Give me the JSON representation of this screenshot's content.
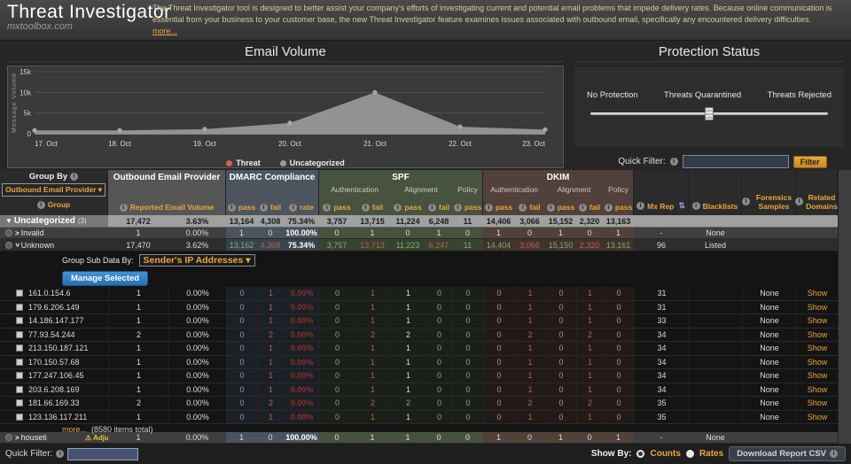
{
  "topbar": {
    "title": "Threat Investigator",
    "site": "mxtoolbox.com",
    "description": "The Threat Investigator tool is designed to better assist your company's efforts of investigating current and potential email problems that impede delivery rates. Because online communication is essential from your business to your customer base, the new Threat Investigator feature examines issues associated with outbound email, specifically any encountered delivery difficulties.",
    "more_link": "more..."
  },
  "email_volume": {
    "heading": "Email Volume"
  },
  "chart_data": {
    "type": "area",
    "title": "Email Volume",
    "ylabel": "Message Volume",
    "x": [
      "17. Oct",
      "18. Oct",
      "19. Oct",
      "20. Oct",
      "21. Oct",
      "22. Oct",
      "23. Oct"
    ],
    "series": [
      {
        "name": "Threat",
        "color": "#e05c5c",
        "values": [
          0,
          0,
          0,
          0,
          0,
          0,
          0
        ]
      },
      {
        "name": "Uncategorized",
        "color": "#9a9a9a",
        "values": [
          800,
          800,
          1100,
          2600,
          10000,
          1700,
          1000
        ]
      }
    ],
    "ylim": [
      0,
      15000
    ],
    "yticks": [
      {
        "v": 0,
        "label": "0"
      },
      {
        "v": 5000,
        "label": "5k"
      },
      {
        "v": 10000,
        "label": "10k"
      },
      {
        "v": 15000,
        "label": "15k"
      }
    ],
    "grid": true,
    "legend_position": "bottom"
  },
  "protection": {
    "heading": "Protection Status",
    "labels": [
      "No Protection",
      "Threats Quarantined",
      "Threats Rejected"
    ],
    "slider_position_pct": 50,
    "quick_filter_label": "Quick Filter:",
    "filter_button": "Filter"
  },
  "table_header": {
    "group_by": "Group By",
    "group_by_value": "Outbound Email Provider ▾",
    "group_sub": "Group",
    "provider_title": "Outbound Email Provider",
    "provider_sub": "Reported Email Volume",
    "dmarc_title": "DMARC Compliance",
    "spf_title": "SPF",
    "dkim_title": "DKIM",
    "auth": "Authentication",
    "align": "Alignment",
    "policy": "Policy",
    "pass": "pass",
    "fail": "fail",
    "rate": "rate",
    "mxrep": "Mx Rep",
    "sort_icon": "⇅",
    "blacklists": "Blacklists",
    "forensics": "Forensics Samples",
    "related": "Related Domains"
  },
  "rows": [
    {
      "label": "Uncategorized",
      "suffix": "(3)",
      "style": "rs-sum",
      "icon": false,
      "expander": "tri",
      "cells": [
        [
          "17,472",
          "dk"
        ],
        [
          "3.63%",
          "dk"
        ],
        [
          "13,164",
          "dk"
        ],
        [
          "4,308",
          "dk"
        ],
        [
          "75.34%",
          "dk"
        ],
        [
          "3,757",
          "dk"
        ],
        [
          "13,715",
          "dk"
        ],
        [
          "11,224",
          "dk"
        ],
        [
          "6,248",
          "dk"
        ],
        [
          "11",
          "dk"
        ],
        [
          "14,406",
          "dk"
        ],
        [
          "3,066",
          "dk"
        ],
        [
          "15,152",
          "dk"
        ],
        [
          "2,320",
          "dk"
        ],
        [
          "13,163",
          "dk"
        ],
        [
          "",
          ""
        ],
        [
          "",
          ""
        ],
        [
          "",
          ""
        ],
        [
          "",
          ""
        ]
      ]
    },
    {
      "label": "Invalid",
      "style": "rs-mid",
      "icon": true,
      "expander": "right",
      "cells": [
        [
          "1",
          "w"
        ],
        [
          "0.00%",
          "w"
        ],
        [
          "1",
          "w"
        ],
        [
          "0",
          "w"
        ],
        [
          "100.00%",
          "bw"
        ],
        [
          "0",
          "w"
        ],
        [
          "1",
          "w"
        ],
        [
          "0",
          "w"
        ],
        [
          "1",
          "w"
        ],
        [
          "0",
          "w"
        ],
        [
          "1",
          "w"
        ],
        [
          "0",
          "w"
        ],
        [
          "1",
          "w"
        ],
        [
          "0",
          "w"
        ],
        [
          "1",
          "w"
        ],
        [
          "-",
          "w"
        ],
        [
          "None",
          "w"
        ],
        [
          "",
          ""
        ],
        [
          "",
          ""
        ]
      ]
    },
    {
      "label": "Unknown",
      "style": "rs-dark",
      "icon": true,
      "expander": "down",
      "cells": [
        [
          "17,470",
          "w"
        ],
        [
          "3.62%",
          "w"
        ],
        [
          "13,162",
          "g"
        ],
        [
          "4,308",
          "r"
        ],
        [
          "75.34%",
          "bw"
        ],
        [
          "3,757",
          "g"
        ],
        [
          "13,713",
          "r"
        ],
        [
          "11,223",
          "g"
        ],
        [
          "6,247",
          "r"
        ],
        [
          "11",
          "g"
        ],
        [
          "14,404",
          "g"
        ],
        [
          "3,066",
          "r"
        ],
        [
          "15,150",
          "g"
        ],
        [
          "2,320",
          "r"
        ],
        [
          "13,161",
          "g"
        ],
        [
          "96",
          "w"
        ],
        [
          "Listed",
          "w"
        ],
        [
          "",
          ""
        ],
        [
          "",
          ""
        ]
      ]
    }
  ],
  "subpanel": {
    "label": "Group Sub Data By:",
    "value": "Sender's IP Addresses ▾",
    "manage_button": "Manage Selected",
    "more_link": "more...",
    "more_total": "(8580 items total)",
    "ip_rows": [
      {
        "ip": "161.0.154.6",
        "cells": [
          [
            "1",
            "w"
          ],
          [
            "0.00%",
            "w"
          ],
          [
            "0",
            "mut"
          ],
          [
            "1",
            "r"
          ],
          [
            "0.00%",
            "dr"
          ],
          [
            "0",
            "mut"
          ],
          [
            "1",
            "r"
          ],
          [
            "1",
            "w"
          ],
          [
            "0",
            "mut"
          ],
          [
            "0",
            "mut"
          ],
          [
            "0",
            "mut"
          ],
          [
            "1",
            "r"
          ],
          [
            "0",
            "mut"
          ],
          [
            "1",
            "r"
          ],
          [
            "0",
            "mut"
          ],
          [
            "31",
            "w"
          ],
          [
            "",
            ""
          ],
          [
            "None",
            "w"
          ],
          [
            "Show",
            "o"
          ]
        ]
      },
      {
        "ip": "179.6.206.149",
        "cells": [
          [
            "1",
            "w"
          ],
          [
            "0.00%",
            "w"
          ],
          [
            "0",
            "mut"
          ],
          [
            "1",
            "r"
          ],
          [
            "0.00%",
            "dr"
          ],
          [
            "0",
            "mut"
          ],
          [
            "1",
            "r"
          ],
          [
            "1",
            "w"
          ],
          [
            "0",
            "mut"
          ],
          [
            "0",
            "mut"
          ],
          [
            "0",
            "mut"
          ],
          [
            "1",
            "r"
          ],
          [
            "0",
            "mut"
          ],
          [
            "1",
            "r"
          ],
          [
            "0",
            "mut"
          ],
          [
            "31",
            "w"
          ],
          [
            "",
            ""
          ],
          [
            "None",
            "w"
          ],
          [
            "Show",
            "o"
          ]
        ]
      },
      {
        "ip": "14.186.147.177",
        "cells": [
          [
            "1",
            "w"
          ],
          [
            "0.00%",
            "w"
          ],
          [
            "0",
            "mut"
          ],
          [
            "1",
            "r"
          ],
          [
            "0.00%",
            "dr"
          ],
          [
            "0",
            "mut"
          ],
          [
            "1",
            "r"
          ],
          [
            "1",
            "w"
          ],
          [
            "0",
            "mut"
          ],
          [
            "0",
            "mut"
          ],
          [
            "0",
            "mut"
          ],
          [
            "1",
            "r"
          ],
          [
            "0",
            "mut"
          ],
          [
            "1",
            "r"
          ],
          [
            "0",
            "mut"
          ],
          [
            "33",
            "w"
          ],
          [
            "",
            ""
          ],
          [
            "None",
            "w"
          ],
          [
            "Show",
            "o"
          ]
        ]
      },
      {
        "ip": "77.93.54.244",
        "cells": [
          [
            "2",
            "w"
          ],
          [
            "0.00%",
            "w"
          ],
          [
            "0",
            "mut"
          ],
          [
            "2",
            "r"
          ],
          [
            "0.00%",
            "dr"
          ],
          [
            "0",
            "mut"
          ],
          [
            "2",
            "r"
          ],
          [
            "2",
            "w"
          ],
          [
            "0",
            "mut"
          ],
          [
            "0",
            "mut"
          ],
          [
            "0",
            "mut"
          ],
          [
            "2",
            "r"
          ],
          [
            "0",
            "mut"
          ],
          [
            "2",
            "r"
          ],
          [
            "0",
            "mut"
          ],
          [
            "34",
            "w"
          ],
          [
            "",
            ""
          ],
          [
            "None",
            "w"
          ],
          [
            "Show",
            "o"
          ]
        ]
      },
      {
        "ip": "213.150.187.121",
        "cells": [
          [
            "1",
            "w"
          ],
          [
            "0.00%",
            "w"
          ],
          [
            "0",
            "mut"
          ],
          [
            "1",
            "r"
          ],
          [
            "0.00%",
            "dr"
          ],
          [
            "0",
            "mut"
          ],
          [
            "1",
            "r"
          ],
          [
            "1",
            "w"
          ],
          [
            "0",
            "mut"
          ],
          [
            "0",
            "mut"
          ],
          [
            "0",
            "mut"
          ],
          [
            "1",
            "r"
          ],
          [
            "0",
            "mut"
          ],
          [
            "1",
            "r"
          ],
          [
            "0",
            "mut"
          ],
          [
            "34",
            "w"
          ],
          [
            "",
            ""
          ],
          [
            "None",
            "w"
          ],
          [
            "Show",
            "o"
          ]
        ]
      },
      {
        "ip": "170.150.57.68",
        "cells": [
          [
            "1",
            "w"
          ],
          [
            "0.00%",
            "w"
          ],
          [
            "0",
            "mut"
          ],
          [
            "1",
            "r"
          ],
          [
            "0.00%",
            "dr"
          ],
          [
            "0",
            "mut"
          ],
          [
            "1",
            "r"
          ],
          [
            "1",
            "w"
          ],
          [
            "0",
            "mut"
          ],
          [
            "0",
            "mut"
          ],
          [
            "0",
            "mut"
          ],
          [
            "1",
            "r"
          ],
          [
            "0",
            "mut"
          ],
          [
            "1",
            "r"
          ],
          [
            "0",
            "mut"
          ],
          [
            "34",
            "w"
          ],
          [
            "",
            ""
          ],
          [
            "None",
            "w"
          ],
          [
            "Show",
            "o"
          ]
        ]
      },
      {
        "ip": "177.247.106.45",
        "cells": [
          [
            "1",
            "w"
          ],
          [
            "0.00%",
            "w"
          ],
          [
            "0",
            "mut"
          ],
          [
            "1",
            "r"
          ],
          [
            "0.00%",
            "dr"
          ],
          [
            "0",
            "mut"
          ],
          [
            "1",
            "r"
          ],
          [
            "1",
            "w"
          ],
          [
            "0",
            "mut"
          ],
          [
            "0",
            "mut"
          ],
          [
            "0",
            "mut"
          ],
          [
            "1",
            "r"
          ],
          [
            "0",
            "mut"
          ],
          [
            "1",
            "r"
          ],
          [
            "0",
            "mut"
          ],
          [
            "34",
            "w"
          ],
          [
            "",
            ""
          ],
          [
            "None",
            "w"
          ],
          [
            "Show",
            "o"
          ]
        ]
      },
      {
        "ip": "203.6.208.169",
        "cells": [
          [
            "1",
            "w"
          ],
          [
            "0.00%",
            "w"
          ],
          [
            "0",
            "mut"
          ],
          [
            "1",
            "r"
          ],
          [
            "0.00%",
            "dr"
          ],
          [
            "0",
            "mut"
          ],
          [
            "1",
            "r"
          ],
          [
            "1",
            "w"
          ],
          [
            "0",
            "mut"
          ],
          [
            "0",
            "mut"
          ],
          [
            "0",
            "mut"
          ],
          [
            "1",
            "r"
          ],
          [
            "0",
            "mut"
          ],
          [
            "1",
            "r"
          ],
          [
            "0",
            "mut"
          ],
          [
            "34",
            "w"
          ],
          [
            "",
            ""
          ],
          [
            "None",
            "w"
          ],
          [
            "Show",
            "o"
          ]
        ]
      },
      {
        "ip": "181.66.169.33",
        "cells": [
          [
            "2",
            "w"
          ],
          [
            "0.00%",
            "w"
          ],
          [
            "0",
            "mut"
          ],
          [
            "2",
            "r"
          ],
          [
            "0.00%",
            "dr"
          ],
          [
            "0",
            "mut"
          ],
          [
            "2",
            "r"
          ],
          [
            "2",
            "g"
          ],
          [
            "0",
            "mut"
          ],
          [
            "0",
            "mut"
          ],
          [
            "0",
            "mut"
          ],
          [
            "2",
            "r"
          ],
          [
            "0",
            "mut"
          ],
          [
            "2",
            "r"
          ],
          [
            "0",
            "mut"
          ],
          [
            "35",
            "w"
          ],
          [
            "",
            ""
          ],
          [
            "None",
            "w"
          ],
          [
            "Show",
            "o"
          ]
        ]
      },
      {
        "ip": "123.136.117.211",
        "cells": [
          [
            "1",
            "w"
          ],
          [
            "0.00%",
            "w"
          ],
          [
            "0",
            "mut"
          ],
          [
            "1",
            "r"
          ],
          [
            "0.00%",
            "dr"
          ],
          [
            "0",
            "mut"
          ],
          [
            "1",
            "r"
          ],
          [
            "1",
            "w"
          ],
          [
            "0",
            "mut"
          ],
          [
            "0",
            "mut"
          ],
          [
            "0",
            "mut"
          ],
          [
            "1",
            "r"
          ],
          [
            "0",
            "mut"
          ],
          [
            "1",
            "r"
          ],
          [
            "0",
            "mut"
          ],
          [
            "35",
            "w"
          ],
          [
            "",
            ""
          ],
          [
            "None",
            "w"
          ],
          [
            "Show",
            "o"
          ]
        ]
      }
    ]
  },
  "bottom_row": {
    "label": "houseti",
    "style": "rs-mid",
    "icon": true,
    "expander": "right",
    "badge": "Adjust",
    "cells": [
      [
        "1",
        "w"
      ],
      [
        "0.00%",
        "w"
      ],
      [
        "1",
        "w"
      ],
      [
        "0",
        "w"
      ],
      [
        "100.00%",
        "bw"
      ],
      [
        "0",
        "w"
      ],
      [
        "1",
        "w"
      ],
      [
        "1",
        "w"
      ],
      [
        "0",
        "w"
      ],
      [
        "0",
        "w"
      ],
      [
        "1",
        "w"
      ],
      [
        "0",
        "w"
      ],
      [
        "1",
        "w"
      ],
      [
        "0",
        "w"
      ],
      [
        "1",
        "w"
      ],
      [
        "-",
        "w"
      ],
      [
        "None",
        "w"
      ],
      [
        "",
        ""
      ],
      [
        "",
        ""
      ]
    ]
  },
  "footer": {
    "quick_filter_label": "Quick Filter:",
    "show_by": "Show By:",
    "counts": "Counts",
    "rates": "Rates",
    "download": "Download Report CSV"
  }
}
